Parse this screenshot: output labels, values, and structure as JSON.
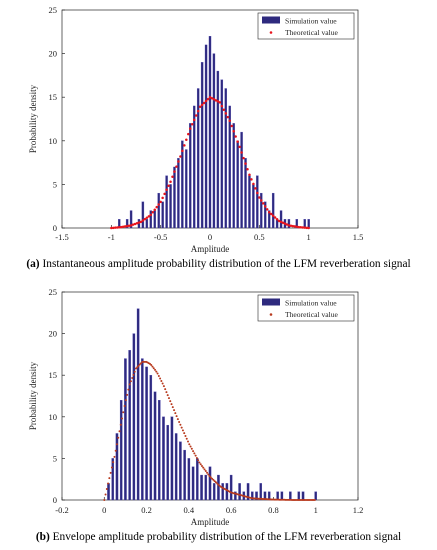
{
  "colors": {
    "bar": "#2e2a7e",
    "bar_edge": "#4a44b0",
    "theory": "#e8141c",
    "theory_b": "#b83a1e"
  },
  "chart_data": [
    {
      "type": "bar",
      "panel": "a",
      "xlabel": "Amplitude",
      "ylabel": "Probability density",
      "xlim": [
        -1.5,
        1.5
      ],
      "ylim": [
        0,
        25
      ],
      "xticks": [
        "-1.5",
        "-1",
        "-0.5",
        "0",
        "0.5",
        "1",
        "1.5"
      ],
      "yticks": [
        "0",
        "5",
        "10",
        "15",
        "20",
        "25"
      ],
      "legend": {
        "position": "top-right",
        "entries": [
          "Simulation value",
          "Theoretical value"
        ]
      },
      "grid": false,
      "caption_tag": "(a)",
      "caption_text": " Instantaneous amplitude probability distribution of the LFM reverberation signal",
      "series": [
        {
          "name": "Simulation value",
          "kind": "histogram",
          "bin_width": 0.01,
          "x": [
            -0.92,
            -0.88,
            -0.84,
            -0.8,
            -0.76,
            -0.72,
            -0.68,
            -0.64,
            -0.6,
            -0.56,
            -0.52,
            -0.48,
            -0.44,
            -0.4,
            -0.36,
            -0.32,
            -0.28,
            -0.24,
            -0.2,
            -0.16,
            -0.12,
            -0.08,
            -0.04,
            0.0,
            0.04,
            0.08,
            0.12,
            0.16,
            0.2,
            0.24,
            0.28,
            0.32,
            0.36,
            0.4,
            0.44,
            0.48,
            0.52,
            0.56,
            0.6,
            0.64,
            0.68,
            0.72,
            0.76,
            0.8,
            0.84,
            0.88,
            0.92,
            0.96,
            1.0
          ],
          "values": [
            1,
            0,
            1,
            2,
            0,
            1,
            3,
            1,
            2,
            2,
            4,
            3,
            6,
            5,
            7,
            8,
            10,
            9,
            12,
            14,
            16,
            19,
            21,
            22,
            20,
            18,
            17,
            16,
            14,
            12,
            10,
            11,
            8,
            6,
            5,
            6,
            4,
            3,
            2,
            4,
            1,
            2,
            1,
            1,
            0,
            1,
            0,
            1,
            1
          ]
        },
        {
          "name": "Theoretical value",
          "kind": "dotted-curve",
          "x": [
            -1.0,
            -0.9,
            -0.8,
            -0.7,
            -0.6,
            -0.5,
            -0.4,
            -0.3,
            -0.2,
            -0.1,
            0.0,
            0.1,
            0.2,
            0.3,
            0.4,
            0.5,
            0.6,
            0.7,
            0.8,
            0.9,
            1.0
          ],
          "values": [
            0.0,
            0.1,
            0.3,
            0.7,
            1.5,
            3.0,
            5.3,
            8.2,
            11.4,
            13.9,
            15.0,
            14.4,
            12.3,
            9.3,
            6.1,
            3.5,
            1.8,
            0.8,
            0.3,
            0.1,
            0.0
          ]
        }
      ]
    },
    {
      "type": "bar",
      "panel": "b",
      "xlabel": "Amplitude",
      "ylabel": "Probability density",
      "xlim": [
        -0.2,
        1.2
      ],
      "ylim": [
        0,
        25
      ],
      "xticks": [
        "-0.2",
        "0",
        "0.2",
        "0.4",
        "0.6",
        "0.8",
        "1",
        "1.2"
      ],
      "yticks": [
        "0",
        "5",
        "10",
        "15",
        "20",
        "25"
      ],
      "legend": {
        "position": "top-right",
        "entries": [
          "Simulation value",
          "Theoretical value"
        ]
      },
      "grid": false,
      "caption_tag": "(b)",
      "caption_text": " Envelope amplitude probability distribution of the LFM reverberation signal",
      "series": [
        {
          "name": "Simulation value",
          "kind": "histogram",
          "bin_width": 0.005,
          "x": [
            0.02,
            0.04,
            0.06,
            0.08,
            0.1,
            0.12,
            0.14,
            0.16,
            0.18,
            0.2,
            0.22,
            0.24,
            0.26,
            0.28,
            0.3,
            0.32,
            0.34,
            0.36,
            0.38,
            0.4,
            0.42,
            0.44,
            0.46,
            0.48,
            0.5,
            0.52,
            0.54,
            0.56,
            0.58,
            0.6,
            0.62,
            0.64,
            0.66,
            0.68,
            0.7,
            0.72,
            0.74,
            0.76,
            0.78,
            0.8,
            0.82,
            0.84,
            0.86,
            0.88,
            0.9,
            0.92,
            0.94,
            0.96,
            0.98,
            1.0
          ],
          "values": [
            2,
            5,
            8,
            12,
            17,
            18,
            20,
            23,
            17,
            16,
            15,
            13,
            12,
            10,
            9,
            10,
            8,
            7,
            6,
            5,
            4,
            5,
            3,
            3,
            4,
            2,
            3,
            2,
            2,
            3,
            1,
            2,
            1,
            2,
            1,
            1,
            2,
            1,
            1,
            0,
            1,
            1,
            0,
            1,
            0,
            1,
            1,
            0,
            0,
            1
          ]
        },
        {
          "name": "Theoretical value",
          "kind": "dotted-curve",
          "x": [
            0.0,
            0.02,
            0.05,
            0.08,
            0.1,
            0.12,
            0.15,
            0.18,
            0.2,
            0.22,
            0.25,
            0.28,
            0.3,
            0.35,
            0.4,
            0.45,
            0.5,
            0.55,
            0.6,
            0.7,
            0.8,
            0.9,
            1.0
          ],
          "values": [
            0.0,
            2.2,
            5.4,
            9.3,
            11.8,
            13.9,
            15.8,
            16.6,
            16.6,
            16.3,
            15.3,
            13.8,
            12.6,
            9.6,
            6.8,
            4.5,
            2.8,
            1.6,
            0.9,
            0.2,
            0.05,
            0.0,
            0.0
          ]
        }
      ]
    }
  ]
}
